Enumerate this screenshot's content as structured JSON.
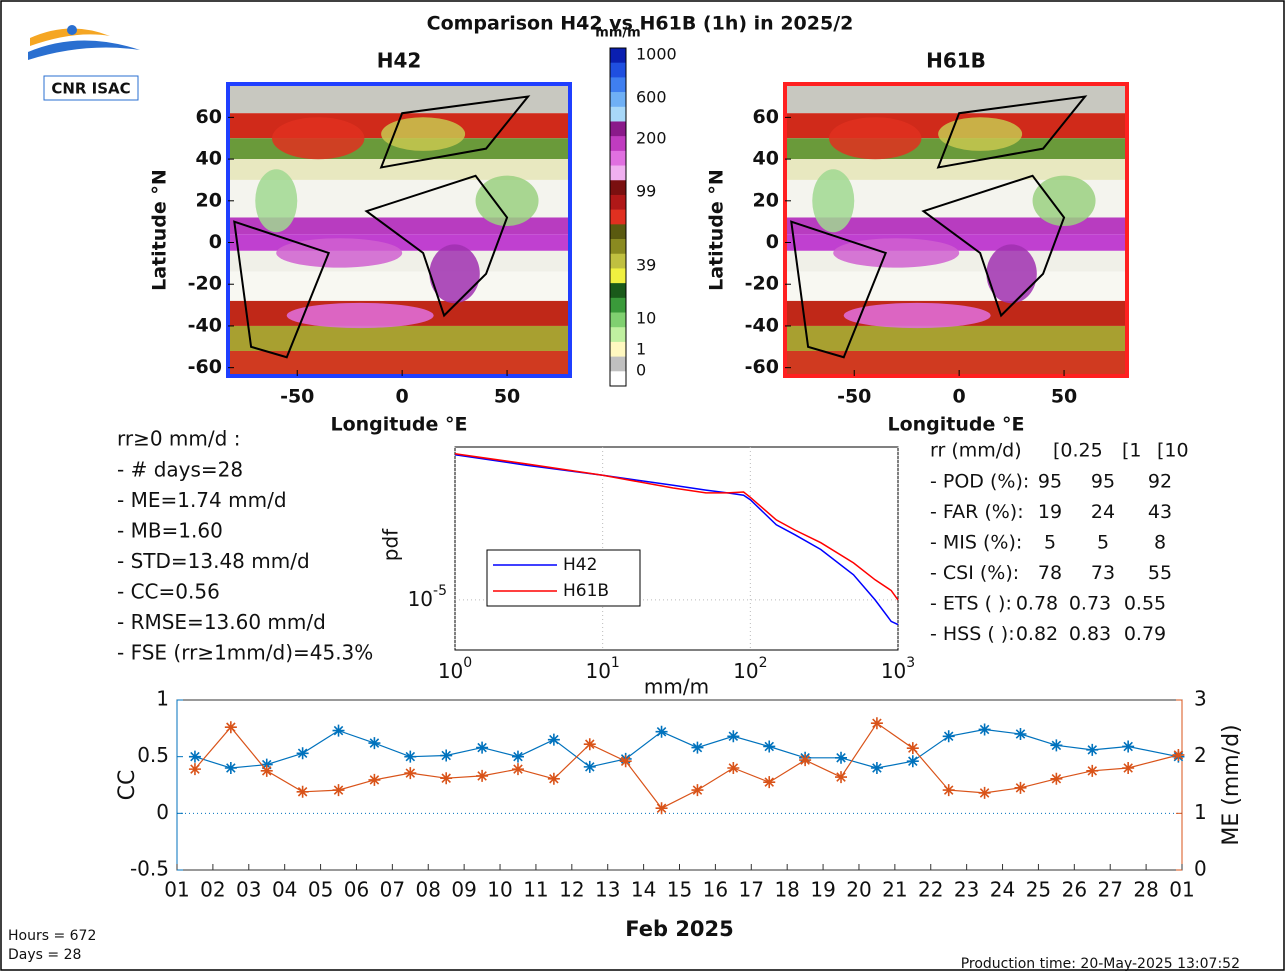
{
  "logo": "CNR ISAC",
  "title": "Comparison H42 vs H61B (1h) in 2025/2",
  "maps": {
    "xlim": [
      -83,
      80
    ],
    "ylim": [
      -64,
      76
    ],
    "xticks": [
      -50,
      0,
      50
    ],
    "yticks": [
      -60,
      -40,
      -20,
      0,
      20,
      40,
      60
    ],
    "xlabel": "Longitude °E",
    "ylabel": "Latitude °N",
    "panels": [
      {
        "title": "H42",
        "frame_color": "#1f3fff"
      },
      {
        "title": "H61B",
        "frame_color": "#ff2020"
      }
    ]
  },
  "colorbar": {
    "label": "mm/m",
    "ticks": [
      1000,
      600,
      200,
      99,
      39,
      10,
      1,
      0
    ],
    "colors": [
      "#0a1fb0",
      "#1f4fe0",
      "#3f7ff0",
      "#6fb0f5",
      "#a8d8f8",
      "#8a1a8a",
      "#c03cc0",
      "#e070e0",
      "#f0b0f0",
      "#7a1010",
      "#b01818",
      "#e03020",
      "#5a5a10",
      "#8a8a20",
      "#c0c040",
      "#f0f040",
      "#1a5a1a",
      "#3a9a3a",
      "#80d070",
      "#c0f0a0",
      "#fff8c0",
      "#c0c0c0",
      "#ffffff"
    ]
  },
  "stats": {
    "header": "rr≥0 mm/d :",
    "lines": [
      "- # days=28",
      "- ME=1.74 mm/d",
      "- MB=1.60",
      "- STD=13.48 mm/d",
      "- CC=0.56",
      "- RMSE=13.60 mm/d",
      "- FSE (rr≥1mm/d)=45.3%"
    ]
  },
  "scores": {
    "header": [
      "rr (mm/d)",
      "[0.25",
      "[1",
      "[10"
    ],
    "rows": [
      {
        "name": "- POD (%):",
        "values": [
          95,
          95,
          92
        ]
      },
      {
        "name": "- FAR (%):",
        "values": [
          19,
          24,
          43
        ]
      },
      {
        "name": "- MIS (%):",
        "values": [
          5,
          5,
          8
        ]
      },
      {
        "name": "- CSI (%):",
        "values": [
          78,
          73,
          55
        ]
      },
      {
        "name": "- ETS ( ):",
        "values": [
          0.78,
          0.73,
          0.55
        ]
      },
      {
        "name": "- HSS ( ):",
        "values": [
          0.82,
          0.83,
          0.79
        ]
      }
    ]
  },
  "chart_data": [
    {
      "type": "line",
      "log_x": true,
      "log_y": true,
      "xlabel": "mm/m",
      "ylabel": "pdf",
      "x": [
        1,
        3,
        10,
        30,
        50,
        70,
        90,
        100,
        150,
        200,
        300,
        500,
        700,
        900,
        1000
      ],
      "xlim": [
        1,
        1000
      ],
      "ylim": [
        6e-07,
        0.054
      ],
      "xticks": [
        {
          "value": 1,
          "label": "10^0"
        },
        {
          "value": 10,
          "label": "10^1"
        },
        {
          "value": 100,
          "label": "10^2"
        },
        {
          "value": 1000,
          "label": "10^3"
        }
      ],
      "yticks": [
        {
          "value": 1e-05,
          "label": "10^-5"
        }
      ],
      "grid": true,
      "legend": "lower left",
      "series": [
        {
          "name": "H42",
          "color": "#0000ff",
          "values": [
            0.035,
            0.0195,
            0.011,
            0.0063,
            0.0048,
            0.0041,
            0.0036,
            0.0028,
            0.00068,
            0.00039,
            0.00017,
            4.1e-05,
            1e-05,
            3e-06,
            2.5e-06
          ]
        },
        {
          "name": "H61B",
          "color": "#ff0000",
          "values": [
            0.037,
            0.021,
            0.011,
            0.0054,
            0.0041,
            0.0041,
            0.0043,
            0.0032,
            0.0009,
            0.00051,
            0.00025,
            8e-05,
            3.1e-05,
            1.7e-05,
            1e-05
          ]
        }
      ]
    },
    {
      "type": "line",
      "xlabel": "Feb 2025",
      "ylabel": "CC",
      "y2label": "ME (mm/d)",
      "xlim": [
        0,
        28
      ],
      "xticks": [
        {
          "value": 0,
          "label": "01"
        },
        {
          "value": 1,
          "label": "02"
        },
        {
          "value": 2,
          "label": "03"
        },
        {
          "value": 3,
          "label": "04"
        },
        {
          "value": 4,
          "label": "05"
        },
        {
          "value": 5,
          "label": "06"
        },
        {
          "value": 6,
          "label": "07"
        },
        {
          "value": 7,
          "label": "08"
        },
        {
          "value": 8,
          "label": "09"
        },
        {
          "value": 9,
          "label": "10"
        },
        {
          "value": 10,
          "label": "11"
        },
        {
          "value": 11,
          "label": "12"
        },
        {
          "value": 12,
          "label": "13"
        },
        {
          "value": 13,
          "label": "14"
        },
        {
          "value": 14,
          "label": "15"
        },
        {
          "value": 15,
          "label": "16"
        },
        {
          "value": 16,
          "label": "17"
        },
        {
          "value": 17,
          "label": "18"
        },
        {
          "value": 18,
          "label": "19"
        },
        {
          "value": 19,
          "label": "20"
        },
        {
          "value": 20,
          "label": "21"
        },
        {
          "value": 21,
          "label": "22"
        },
        {
          "value": 22,
          "label": "23"
        },
        {
          "value": 23,
          "label": "24"
        },
        {
          "value": 24,
          "label": "25"
        },
        {
          "value": 25,
          "label": "26"
        },
        {
          "value": 26,
          "label": "27"
        },
        {
          "value": 27,
          "label": "28"
        },
        {
          "value": 28,
          "label": "01"
        }
      ],
      "ylim": [
        -0.5,
        1
      ],
      "yticks": [
        -0.5,
        0,
        0.5,
        1
      ],
      "y2lim": [
        0,
        3
      ],
      "y2ticks": [
        0,
        1,
        2,
        3
      ],
      "x": [
        0.5,
        1.5,
        2.5,
        3.5,
        4.5,
        5.5,
        6.5,
        7.5,
        8.5,
        9.5,
        10.5,
        11.5,
        12.5,
        13.5,
        14.5,
        15.5,
        16.5,
        17.5,
        18.5,
        19.5,
        20.5,
        21.5,
        22.5,
        23.5,
        24.5,
        25.5,
        26.5,
        27.9
      ],
      "series": [
        {
          "color": "#0072bd",
          "values": [
            0.5,
            0.4,
            0.43,
            0.53,
            0.73,
            0.62,
            0.5,
            0.51,
            0.58,
            0.5,
            0.65,
            0.41,
            0.48,
            0.72,
            0.58,
            0.68,
            0.59,
            0.49,
            0.49,
            0.4,
            0.46,
            0.68,
            0.74,
            0.7,
            0.6,
            0.56,
            0.59,
            0.5
          ]
        },
        {
          "color": "#d95319",
          "axis": "y2",
          "values": [
            1.78,
            2.52,
            1.75,
            1.38,
            1.41,
            1.59,
            1.71,
            1.62,
            1.66,
            1.78,
            1.61,
            2.22,
            1.92,
            1.09,
            1.41,
            1.8,
            1.55,
            1.94,
            1.64,
            2.59,
            2.15,
            1.41,
            1.36,
            1.45,
            1.61,
            1.75,
            1.8,
            2.03
          ]
        }
      ]
    }
  ],
  "footer": {
    "hours": "Hours = 672",
    "days": "Days = 28",
    "production": "Production time: 20-May-2025 13:07:52"
  }
}
